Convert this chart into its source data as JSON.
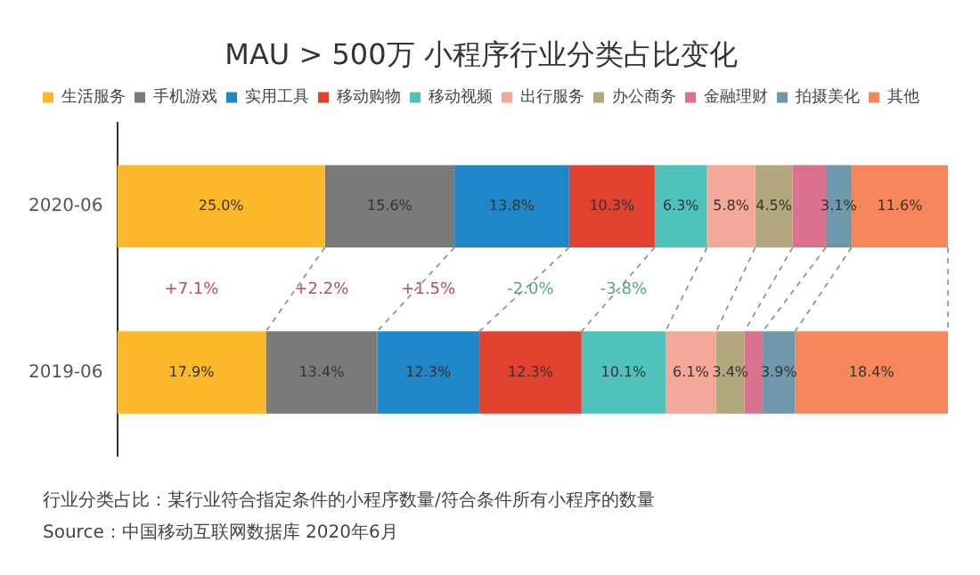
{
  "chart_data": {
    "type": "bar",
    "orientation": "horizontal",
    "stacked": true,
    "title": "MAU > 500万 小程序行业分类占比变化",
    "categories": [
      "2020-06",
      "2019-06"
    ],
    "series": [
      {
        "name": "生活服务",
        "color": "#fbb829",
        "values": [
          25.0,
          17.9
        ],
        "value_labels": [
          "25.0%",
          "17.9%"
        ]
      },
      {
        "name": "手机游戏",
        "color": "#7a7a7a",
        "values": [
          15.6,
          13.4
        ],
        "value_labels": [
          "15.6%",
          "13.4%"
        ]
      },
      {
        "name": "实用工具",
        "color": "#1f87c8",
        "values": [
          13.8,
          12.3
        ],
        "value_labels": [
          "13.8%",
          "12.3%"
        ]
      },
      {
        "name": "移动购物",
        "color": "#e0422f",
        "values": [
          10.3,
          12.3
        ],
        "value_labels": [
          "10.3%",
          "12.3%"
        ]
      },
      {
        "name": "移动视频",
        "color": "#4fc3bb",
        "values": [
          6.3,
          10.1
        ],
        "value_labels": [
          "6.3%",
          "10.1%"
        ]
      },
      {
        "name": "出行服务",
        "color": "#f4a89a",
        "values": [
          5.8,
          6.1
        ],
        "value_labels": [
          "5.8%",
          "6.1%"
        ]
      },
      {
        "name": "办公商务",
        "color": "#b3a77d",
        "values": [
          4.5,
          3.4
        ],
        "value_labels": [
          "4.5%",
          "3.4%"
        ]
      },
      {
        "name": "金融理财",
        "color": "#d9718f",
        "values": [
          4.0,
          2.2
        ],
        "value_labels": [
          null,
          null
        ]
      },
      {
        "name": "拍摄美化",
        "color": "#6f98ad",
        "values": [
          3.1,
          3.9
        ],
        "value_labels": [
          "3.1%",
          "3.9%"
        ]
      },
      {
        "name": "其他",
        "color": "#f5875a",
        "values": [
          11.6,
          18.4
        ],
        "value_labels": [
          "11.6%",
          "18.4%"
        ]
      }
    ],
    "legend": "top",
    "tick_labels": "y",
    "annotations": [
      "+7.1%",
      "+2.2%",
      "+1.5%",
      "-2.0%",
      "-3.8%",
      "行业分类占比：某行业符合指定条件的小程序数量/符合条件所有小程序的数量",
      "Source：中国移动互联网数据库 2020年6月"
    ]
  }
}
